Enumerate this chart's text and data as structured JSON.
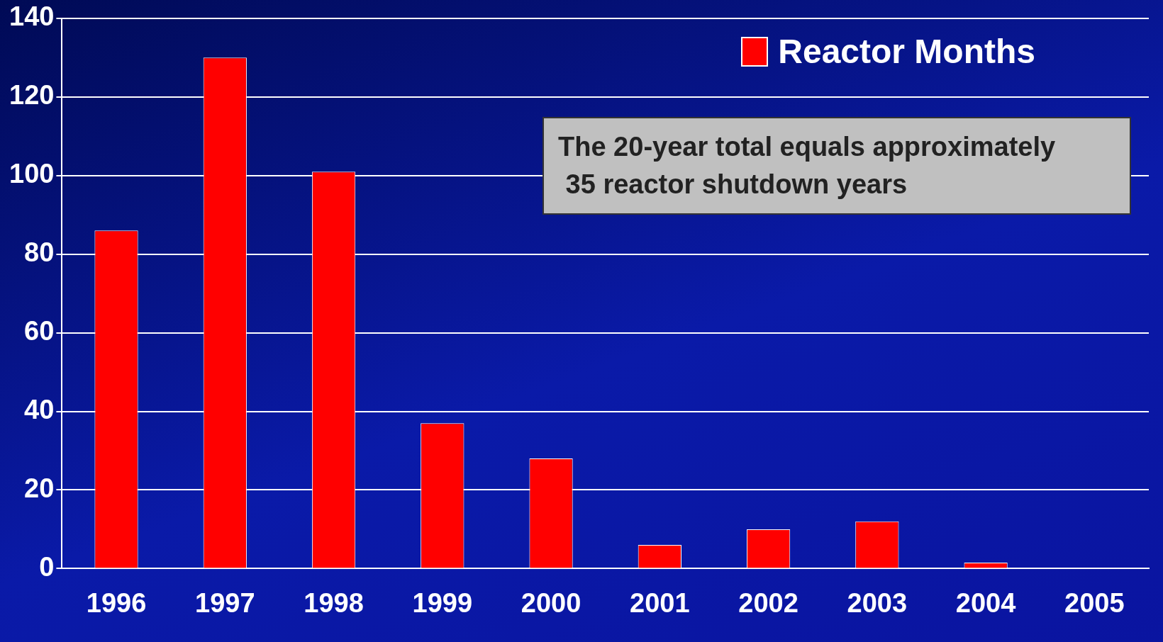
{
  "chart_data": {
    "type": "bar",
    "categories": [
      "1996",
      "1997",
      "1998",
      "1999",
      "2000",
      "2001",
      "2002",
      "2003",
      "2004",
      "2005"
    ],
    "series": [
      {
        "name": "Reactor Months",
        "color": "#ff0000",
        "values": [
          86,
          130,
          101,
          37,
          28,
          6,
          10,
          12,
          1.5,
          0
        ]
      }
    ],
    "ylim": [
      0,
      140
    ],
    "yticks": [
      0,
      20,
      40,
      60,
      80,
      100,
      120,
      140
    ],
    "grid": "y",
    "legend": "top right",
    "annotations": [
      "The 20-year total equals approximately\n 35 reactor shutdown years"
    ]
  }
}
